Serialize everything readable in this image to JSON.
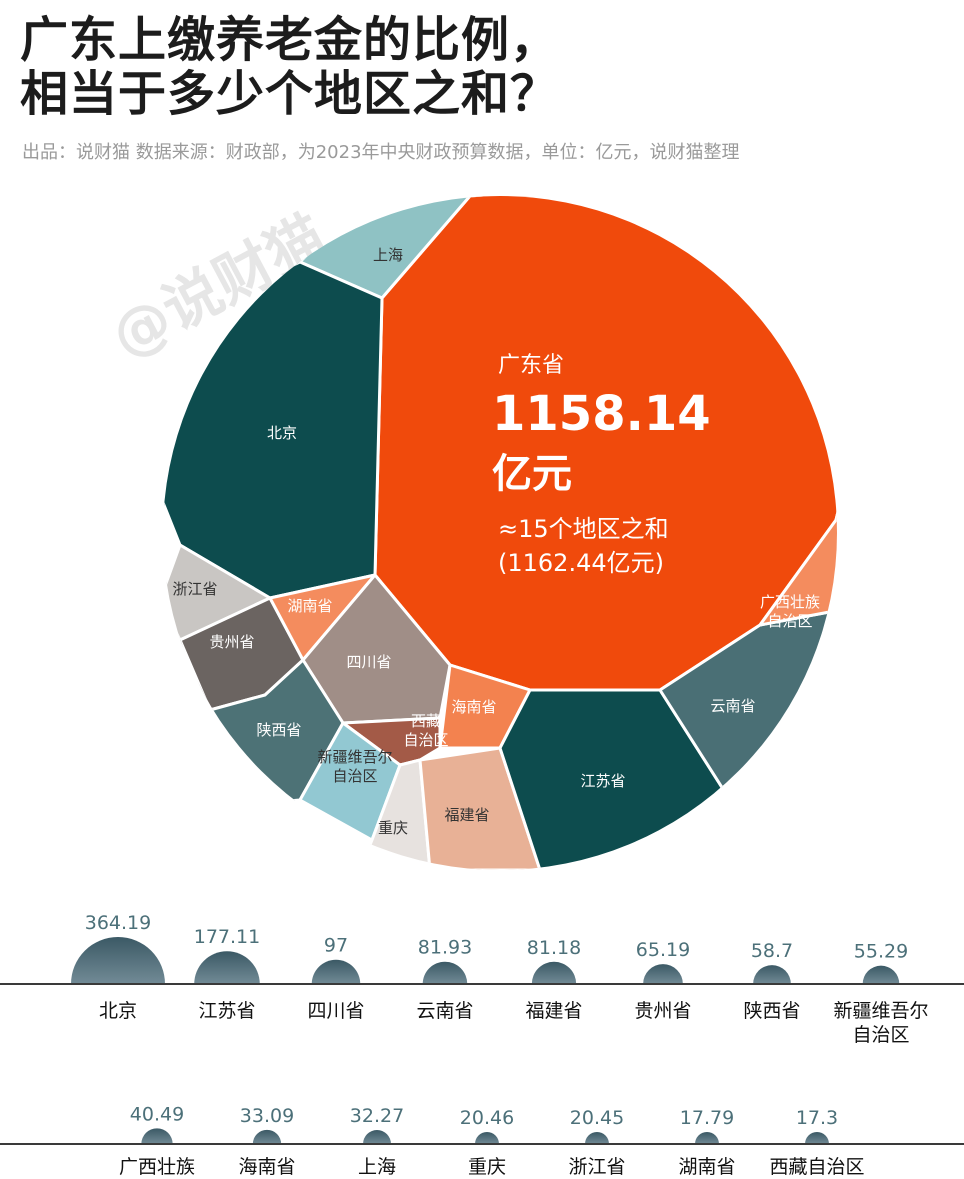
{
  "title_line1": "广东上缴养老金的比例，",
  "title_line2": "相当于多少个地区之和？",
  "subtitle": "出品：说财猫   数据来源：财政部，为2023年中央财政预算数据，单位：亿元，说财猫整理",
  "watermark": "@说财猫",
  "colors": {
    "orange": "#f04a0c",
    "dark_teal": "#0d4c4e",
    "light_orange": "#f48c5e",
    "slate_teal": "#4a6f75",
    "light_teal": "#8fc2cb",
    "bubble_top": "#3d5b66"
  },
  "highlight": {
    "region": "广东省",
    "value": "1158.14",
    "unit": "亿元",
    "note1": "≈15个地区之和",
    "note2": "(1162.44亿元)"
  },
  "chart_data": {
    "type": "voronoi-treemap + bubble",
    "unit": "亿元",
    "highlight_value": 1158.14,
    "sum_of_15": 1162.44,
    "series": [
      {
        "name": "北京",
        "value": 364.19
      },
      {
        "name": "江苏省",
        "value": 177.11
      },
      {
        "name": "四川省",
        "value": 97
      },
      {
        "name": "云南省",
        "value": 81.93
      },
      {
        "name": "福建省",
        "value": 81.18
      },
      {
        "name": "贵州省",
        "value": 65.19
      },
      {
        "name": "陕西省",
        "value": 58.7
      },
      {
        "name": "新疆维吾尔自治区",
        "value": 55.29
      },
      {
        "name": "广西壮族",
        "value": 40.49
      },
      {
        "name": "海南省",
        "value": 33.09
      },
      {
        "name": "上海",
        "value": 32.27
      },
      {
        "name": "重庆",
        "value": 20.46
      },
      {
        "name": "浙江省",
        "value": 20.45
      },
      {
        "name": "湖南省",
        "value": 17.79
      },
      {
        "name": "西藏自治区",
        "value": 17.3
      }
    ],
    "cells": [
      {
        "name": "广东省",
        "label": "",
        "color": "#f04a0c"
      },
      {
        "name": "上海",
        "label": "上海",
        "color": "#8fc2c4"
      },
      {
        "name": "北京",
        "label": "北京",
        "color": "#0d4c4e"
      },
      {
        "name": "浙江省",
        "label": "浙江省",
        "color": "#c9c6c3"
      },
      {
        "name": "贵州省",
        "label": "贵州省",
        "color": "#6b6461"
      },
      {
        "name": "湖南省",
        "label": "湖南省",
        "color": "#f48c5e"
      },
      {
        "name": "四川省",
        "label": "四川省",
        "color": "#a08e87"
      },
      {
        "name": "陕西省",
        "label": "陕西省",
        "color": "#4d7276"
      },
      {
        "name": "海南省",
        "label": "海南省",
        "color": "#f3824f"
      },
      {
        "name": "西藏自治区",
        "label": "西藏\n自治区",
        "color": "#a35a47"
      },
      {
        "name": "新疆维吾尔自治区",
        "label": "新疆维吾尔\n自治区",
        "color": "#92c8d2"
      },
      {
        "name": "重庆",
        "label": "重庆",
        "color": "#e7e2df"
      },
      {
        "name": "福建省",
        "label": "福建省",
        "color": "#e8b196"
      },
      {
        "name": "江苏省",
        "label": "江苏省",
        "color": "#0d4c4e"
      },
      {
        "name": "云南省",
        "label": "云南省",
        "color": "#4a6f75"
      },
      {
        "name": "广西壮族自治区",
        "label": "广西壮族\n自治区",
        "color": "#f48c5e"
      }
    ],
    "bubble_rows": [
      {
        "items": [
          {
            "name": "北京",
            "value": "364.19"
          },
          {
            "name": "江苏省",
            "value": "177.11"
          },
          {
            "name": "四川省",
            "value": "97"
          },
          {
            "name": "云南省",
            "value": "81.93"
          },
          {
            "name": "福建省",
            "value": "81.18"
          },
          {
            "name": "贵州省",
            "value": "65.19"
          },
          {
            "name": "陕西省",
            "value": "58.7"
          },
          {
            "name": "新疆维吾尔\n自治区",
            "value": "55.29"
          }
        ]
      },
      {
        "items": [
          {
            "name": "广西壮族",
            "value": "40.49"
          },
          {
            "name": "海南省",
            "value": "33.09"
          },
          {
            "name": "上海",
            "value": "32.27"
          },
          {
            "name": "重庆",
            "value": "20.46"
          },
          {
            "name": "浙江省",
            "value": "20.45"
          },
          {
            "name": "湖南省",
            "value": "17.79"
          },
          {
            "name": "西藏自治区",
            "value": "17.3"
          }
        ]
      }
    ]
  }
}
